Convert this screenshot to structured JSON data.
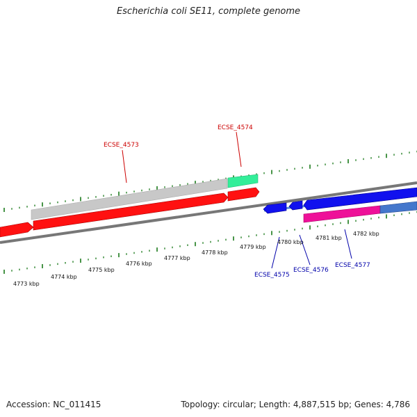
{
  "title": "Escherichia coli SE11, complete genome",
  "footer": {
    "accession": "Accession: NC_011415",
    "summary": "Topology: circular; Length: 4,887,515 bp; Genes: 4,786"
  },
  "colors": {
    "forward_cds": "#ff0000",
    "reverse_cds": "#0000ee",
    "gray_feature": "#c0c0c0",
    "green_feature": "#33ee99",
    "pink_feature": "#ee1199",
    "steel_feature": "#4477cc",
    "tick": "#1a7a1a",
    "forward_label": "#cc0000",
    "reverse_label": "#0000aa",
    "backbone": "#888888"
  },
  "axis": {
    "ticks": [
      "4773 kbp",
      "4774 kbp",
      "4775 kbp",
      "4776 kbp",
      "4777 kbp",
      "4778 kbp",
      "4779 kbp",
      "4780 kbp",
      "4781 kbp",
      "4782 kbp"
    ]
  },
  "genes": {
    "forward": [
      "ECSE_4573",
      "ECSE_4574"
    ],
    "reverse": [
      "ECSE_4575",
      "ECSE_4576",
      "ECSE_4577"
    ]
  }
}
